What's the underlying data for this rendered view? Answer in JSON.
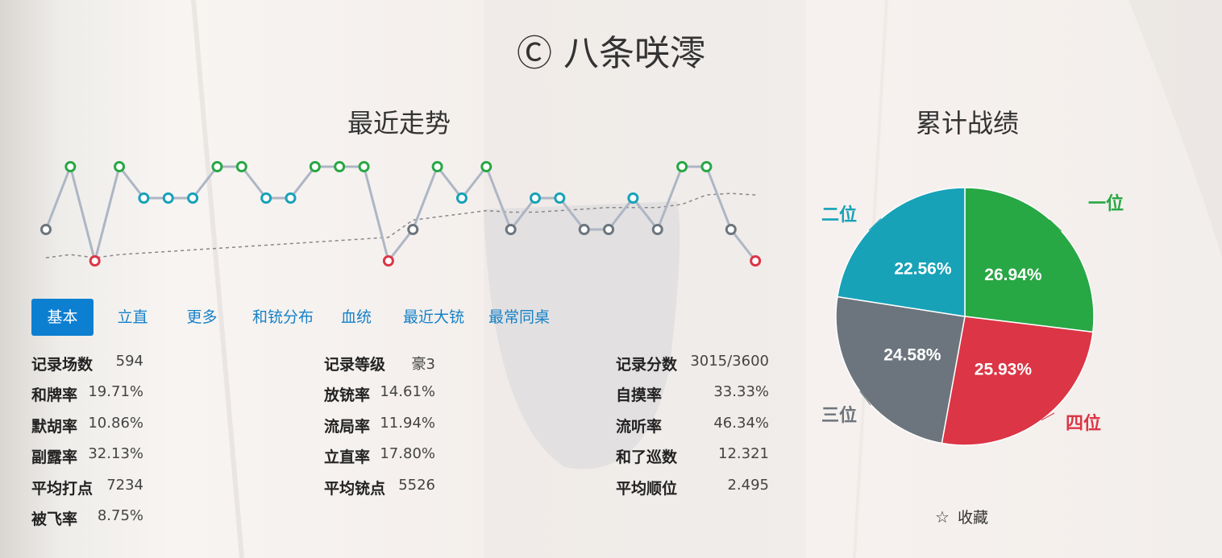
{
  "player": {
    "name": "Ⓒ 八条咲澪"
  },
  "trend": {
    "title": "最近走势",
    "ranks": [
      3,
      1,
      4,
      1,
      2,
      2,
      2,
      1,
      1,
      2,
      2,
      1,
      1,
      1,
      4,
      3,
      1,
      2,
      1,
      3,
      2,
      2,
      3,
      3,
      2,
      3,
      1,
      1,
      3,
      4
    ],
    "average": [
      3.9,
      3.8,
      3.9,
      3.8,
      3.75,
      3.7,
      3.65,
      3.6,
      3.55,
      3.5,
      3.45,
      3.4,
      3.35,
      3.3,
      3.25,
      2.7,
      2.6,
      2.5,
      2.4,
      2.45,
      2.45,
      2.4,
      2.35,
      2.3,
      2.3,
      2.3,
      2.2,
      1.9,
      1.85,
      1.9
    ]
  },
  "rank_colors": {
    "1": "#28a745",
    "2": "#17a2b8",
    "3": "#6c757d",
    "4": "#dc3545"
  },
  "tabs": [
    {
      "label": "基本",
      "active": true
    },
    {
      "label": "立直"
    },
    {
      "label": "更多"
    },
    {
      "label": "和铳分布"
    },
    {
      "label": "血统"
    },
    {
      "label": "最近大铳"
    },
    {
      "label": "最常同桌"
    }
  ],
  "stats": {
    "col1": [
      {
        "label": "记录场数",
        "value": "594"
      },
      {
        "label": "和牌率",
        "value": "19.71%"
      },
      {
        "label": "默胡率",
        "value": "10.86%"
      },
      {
        "label": "副露率",
        "value": "32.13%"
      },
      {
        "label": "平均打点",
        "value": "7234"
      },
      {
        "label": "被飞率",
        "value": "8.75%"
      }
    ],
    "col2": [
      {
        "label": "记录等级",
        "value": "豪3"
      },
      {
        "label": "放铳率",
        "value": "14.61%"
      },
      {
        "label": "流局率",
        "value": "11.94%"
      },
      {
        "label": "立直率",
        "value": "17.80%"
      },
      {
        "label": "平均铳点",
        "value": "5526"
      }
    ],
    "col3": [
      {
        "label": "记录分数",
        "value": "3015/3600"
      },
      {
        "label": "自摸率",
        "value": "33.33%"
      },
      {
        "label": "流听率",
        "value": "46.34%"
      },
      {
        "label": "和了巡数",
        "value": "12.321"
      },
      {
        "label": "平均顺位",
        "value": "2.495"
      }
    ]
  },
  "chart_data": {
    "type": "pie",
    "title": "累计战绩",
    "slices": [
      {
        "name": "一位",
        "value": 26.94,
        "label": "26.94%",
        "color": "#28a745"
      },
      {
        "name": "四位",
        "value": 25.93,
        "label": "25.93%",
        "color": "#dc3545"
      },
      {
        "name": "三位",
        "value": 24.58,
        "label": "24.58%",
        "color": "#6c757d"
      },
      {
        "name": "二位",
        "value": 22.56,
        "label": "22.56%",
        "color": "#17a2b8"
      }
    ]
  },
  "favorite": {
    "icon": "star-outline-icon",
    "label": "收藏"
  }
}
